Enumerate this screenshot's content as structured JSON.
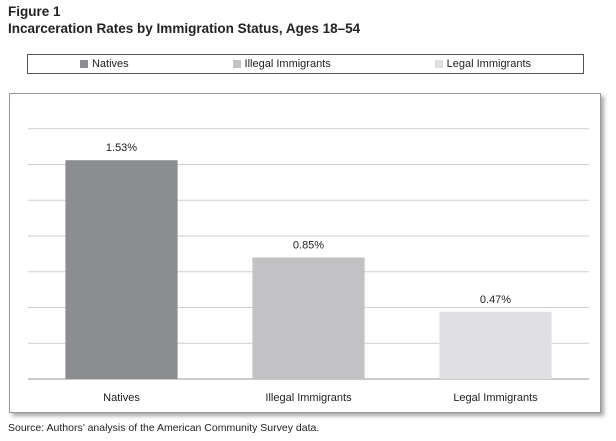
{
  "figure_label": "Figure 1",
  "title": "Incarceration Rates by Immigration Status, Ages 18–54",
  "source": "Source: Authors’ analysis of the American Community Survey data.",
  "legend": [
    {
      "label": "Natives",
      "color": "#8c8d90"
    },
    {
      "label": "Illegal Immigrants",
      "color": "#c2c2c4"
    },
    {
      "label": "Legal Immigrants",
      "color": "#e0e0e2"
    }
  ],
  "chart_data": {
    "type": "bar",
    "title": "Incarceration Rates by Immigration Status, Ages 18–54",
    "categories": [
      "Natives",
      "Illegal Immigrants",
      "Legal Immigrants"
    ],
    "values": [
      1.53,
      0.85,
      0.47
    ],
    "data_labels": [
      "1.53%",
      "0.85%",
      "0.47%"
    ],
    "colors": [
      "#8c8d90",
      "#c2c2c4",
      "#e0e0e2"
    ],
    "ylim": [
      0,
      2.0
    ],
    "gridlines": 8,
    "grid": true,
    "legend_position": "top",
    "xlabel": "",
    "ylabel": ""
  }
}
